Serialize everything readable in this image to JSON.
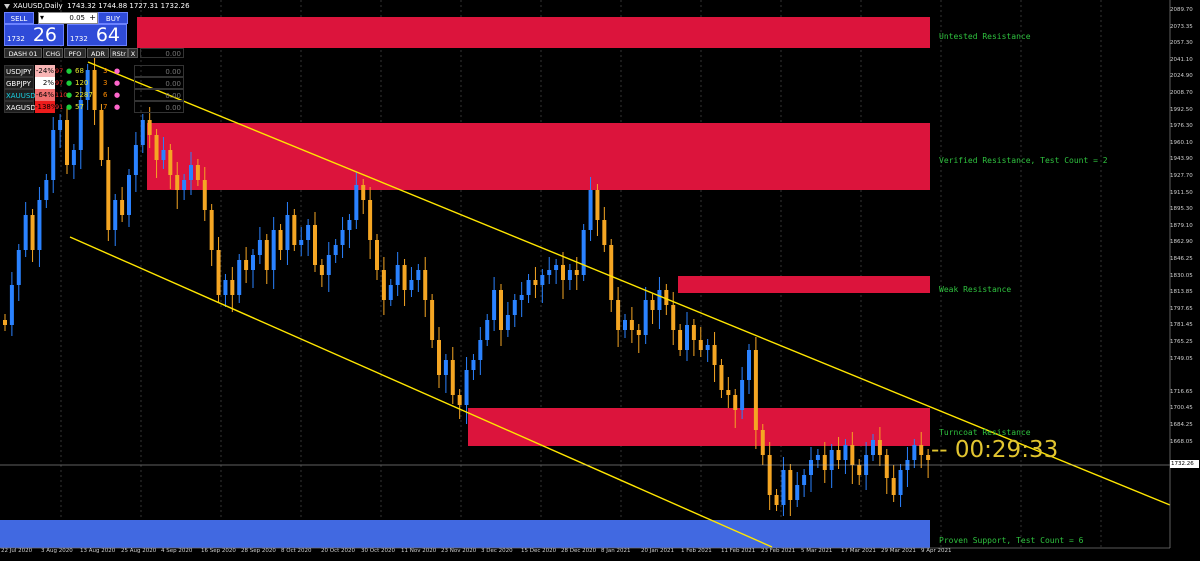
{
  "header": {
    "symbol": "XAUUSD,Daily",
    "ohlc": "1743.32 1744.88 1727.31 1732.26"
  },
  "trade_panel": {
    "sell_label": "SELL",
    "buy_label": "BUY",
    "lot_value": "0.05",
    "minus": "▾",
    "plus": "+",
    "sell_small": "1732",
    "sell_big": "26",
    "buy_small": "1732",
    "buy_big": "64"
  },
  "dashboard": {
    "headers": [
      "DASH 01",
      "CHG",
      "PFO",
      "ADR",
      "RStr",
      "X"
    ],
    "rows": [
      {
        "symbol": "USDJPY",
        "chg": "-24%",
        "pfo": "97",
        "adr": "68",
        "rstr": "3",
        "value": "0.00",
        "chg_color": "#f8b5b5",
        "sym_color": "#ffffff"
      },
      {
        "symbol": "GBPJPY",
        "chg": "2%",
        "pfo": "97",
        "adr": "120",
        "rstr": "3",
        "value": "0.00",
        "chg_color": "#ffffff",
        "sym_color": "#ffffff"
      },
      {
        "symbol": "XAUUSD",
        "chg": "-64%",
        "pfo": "110",
        "adr": "2287",
        "rstr": "6",
        "value": "0.00",
        "chg_color": "#f07070",
        "sym_color": "#19d3e6"
      },
      {
        "symbol": "XAGUSD",
        "chg": "-138%",
        "pfo": "91",
        "adr": "57",
        "rstr": "7",
        "value": "0.00",
        "chg_color": "#ee1c1c",
        "sym_color": "#ffffff"
      }
    ],
    "zero_top": "0.00"
  },
  "zones": {
    "untested": "Untested Resistance",
    "verified": "Verified Resistance, Test Count = 2",
    "weak": "Weak Resistance",
    "turncoat": "Turncoat Resistance",
    "proven": "Proven Support, Test Count = 6"
  },
  "timer": "-- 00:29:33",
  "price_axis": [
    "2089.70",
    "2073.35",
    "2057.30",
    "2041.10",
    "2024.90",
    "2008.70",
    "1992.50",
    "1976.30",
    "1960.10",
    "1943.90",
    "1927.70",
    "1911.50",
    "1895.30",
    "1879.10",
    "1862.90",
    "1846.25",
    "1830.05",
    "1813.85",
    "1797.65",
    "1781.45",
    "1765.25",
    "1749.05",
    "1716.65",
    "1700.45",
    "1684.25",
    "1668.05"
  ],
  "current_price": "1732.26",
  "date_axis": [
    "22 Jul 2020",
    "3 Aug 2020",
    "13 Aug 2020",
    "25 Aug 2020",
    "4 Sep 2020",
    "16 Sep 2020",
    "28 Sep 2020",
    "8 Oct 2020",
    "20 Oct 2020",
    "30 Oct 2020",
    "11 Nov 2020",
    "23 Nov 2020",
    "3 Dec 2020",
    "15 Dec 2020",
    "28 Dec 2020",
    "8 Jan 2021",
    "20 Jan 2021",
    "1 Feb 2021",
    "11 Feb 2021",
    "23 Feb 2021",
    "5 Mar 2021",
    "17 Mar 2021",
    "29 Mar 2021",
    "9 Apr 2021"
  ],
  "colors": {
    "bull": "#2a82ff",
    "bear": "#f5a623",
    "zone_red": "#dc143c",
    "zone_blue": "#4169e1",
    "trendline": "#ffe600"
  }
}
